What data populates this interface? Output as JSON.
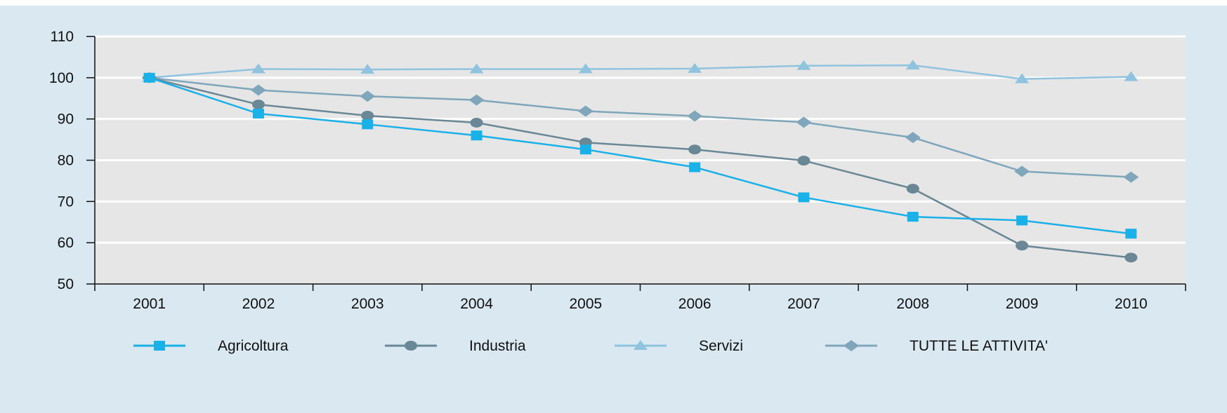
{
  "chart_data": {
    "type": "line",
    "title": "",
    "xlabel": "",
    "ylabel": "",
    "ylim": [
      50,
      110
    ],
    "yticks": [
      50,
      60,
      70,
      80,
      90,
      100,
      110
    ],
    "categories": [
      "2001",
      "2002",
      "2003",
      "2004",
      "2005",
      "2006",
      "2007",
      "2008",
      "2009",
      "2010"
    ],
    "grid": "horizontal",
    "legend_position": "bottom",
    "series": [
      {
        "name": "Agricoltura",
        "marker": "square",
        "color": "#1ab0e8",
        "values": [
          100,
          91.3,
          88.7,
          86,
          82.6,
          78.3,
          71,
          66.3,
          65.4,
          62.2
        ]
      },
      {
        "name": "Industria",
        "marker": "circle",
        "color": "#6a8796",
        "values": [
          100,
          93.5,
          90.8,
          89.1,
          84.3,
          82.6,
          79.9,
          73.1,
          59.3,
          56.4
        ]
      },
      {
        "name": "Servizi",
        "marker": "triangle",
        "color": "#8fc3de",
        "values": [
          100,
          102.1,
          102,
          102.1,
          102.1,
          102.2,
          102.9,
          103,
          99.7,
          100.2
        ]
      },
      {
        "name": "TUTTE LE ATTIVITA'",
        "marker": "diamond",
        "color": "#7fa6bb",
        "values": [
          100,
          97,
          95.5,
          94.6,
          91.9,
          90.7,
          89.2,
          85.5,
          77.3,
          75.9
        ]
      }
    ]
  }
}
